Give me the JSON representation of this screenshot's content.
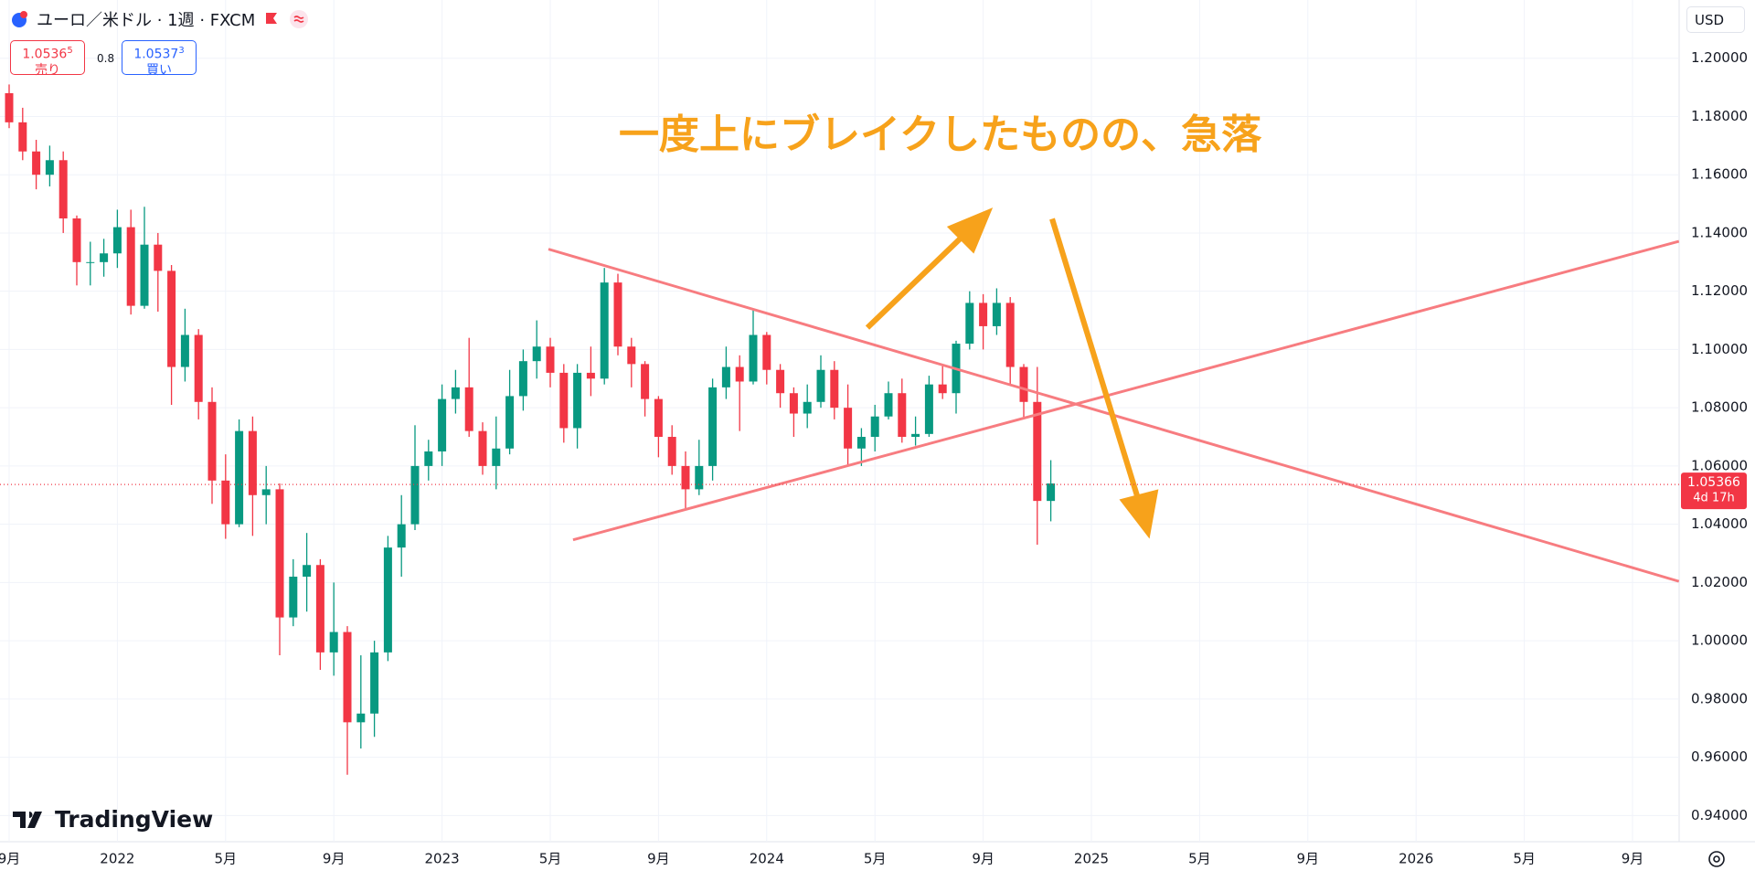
{
  "chart_data": {
    "type": "candlestick",
    "title": "ユーロ／米ドル · 1週 · FXCM",
    "currency": "USD",
    "quote": {
      "bid": "1.0536",
      "bid_pip": "5",
      "bid_label": "売り",
      "spread": "0.8",
      "ask": "1.0537",
      "ask_pip": "3",
      "ask_label": "買い"
    },
    "annotation": "一度上にブレイクしたものの、急落",
    "brand": "TradingView",
    "last_price": 1.05366,
    "countdown": "4d 17h",
    "up_color": "#089981",
    "down_color": "#f23645",
    "grid": true,
    "ylim": [
      0.931,
      1.22
    ],
    "yticks": [
      {
        "value": 0.94,
        "label": "0.94000"
      },
      {
        "value": 0.96,
        "label": "0.96000"
      },
      {
        "value": 0.98,
        "label": "0.98000"
      },
      {
        "value": 1.0,
        "label": "1.00000"
      },
      {
        "value": 1.02,
        "label": "1.02000"
      },
      {
        "value": 1.04,
        "label": "1.04000"
      },
      {
        "value": 1.06,
        "label": "1.06000"
      },
      {
        "value": 1.08,
        "label": "1.08000"
      },
      {
        "value": 1.1,
        "label": "1.10000"
      },
      {
        "value": 1.12,
        "label": "1.12000"
      },
      {
        "value": 1.14,
        "label": "1.14000"
      },
      {
        "value": 1.16,
        "label": "1.16000"
      },
      {
        "value": 1.18,
        "label": "1.18000"
      },
      {
        "value": 1.2,
        "label": "1.20000"
      }
    ],
    "categories": [
      "9月",
      null,
      null,
      null,
      null,
      null,
      null,
      null,
      "2022",
      null,
      null,
      null,
      null,
      null,
      null,
      null,
      "5月",
      null,
      null,
      null,
      null,
      null,
      null,
      null,
      "9月",
      null,
      null,
      null,
      null,
      null,
      null,
      null,
      "2023",
      null,
      null,
      null,
      null,
      null,
      null,
      null,
      "5月",
      null,
      null,
      null,
      null,
      null,
      null,
      null,
      "9月",
      null,
      null,
      null,
      null,
      null,
      null,
      null,
      "2024",
      null,
      null,
      null,
      null,
      null,
      null,
      null,
      "5月",
      null,
      null,
      null,
      null,
      null,
      null,
      null,
      "9月",
      null,
      null,
      null,
      null,
      null,
      null,
      null,
      "2025",
      null,
      null,
      null,
      null,
      null,
      null,
      null,
      "5月",
      null,
      null,
      null,
      null,
      null,
      null,
      null,
      "9月",
      null,
      null,
      null,
      null,
      null,
      null,
      null,
      "2026",
      null,
      null,
      null,
      null,
      null,
      null,
      null,
      "5月",
      null,
      null,
      null,
      null,
      null,
      null,
      null,
      "9月",
      null,
      null,
      null
    ],
    "ohlc": [
      [
        1.188,
        1.191,
        1.176,
        1.178
      ],
      [
        1.178,
        1.183,
        1.165,
        1.168
      ],
      [
        1.168,
        1.172,
        1.155,
        1.16
      ],
      [
        1.16,
        1.17,
        1.156,
        1.165
      ],
      [
        1.165,
        1.168,
        1.14,
        1.145
      ],
      [
        1.145,
        1.146,
        1.122,
        1.13
      ],
      [
        1.13,
        1.137,
        1.122,
        1.13
      ],
      [
        1.13,
        1.138,
        1.125,
        1.133
      ],
      [
        1.133,
        1.148,
        1.128,
        1.142
      ],
      [
        1.142,
        1.148,
        1.112,
        1.115
      ],
      [
        1.115,
        1.149,
        1.114,
        1.136
      ],
      [
        1.136,
        1.14,
        1.113,
        1.127
      ],
      [
        1.127,
        1.129,
        1.081,
        1.094
      ],
      [
        1.094,
        1.114,
        1.089,
        1.105
      ],
      [
        1.105,
        1.107,
        1.076,
        1.082
      ],
      [
        1.082,
        1.087,
        1.047,
        1.055
      ],
      [
        1.055,
        1.064,
        1.035,
        1.04
      ],
      [
        1.04,
        1.076,
        1.039,
        1.072
      ],
      [
        1.072,
        1.077,
        1.036,
        1.05
      ],
      [
        1.05,
        1.06,
        1.04,
        1.052
      ],
      [
        1.052,
        1.054,
        0.995,
        1.008
      ],
      [
        1.008,
        1.028,
        1.005,
        1.022
      ],
      [
        1.022,
        1.037,
        1.01,
        1.026
      ],
      [
        1.026,
        1.028,
        0.99,
        0.996
      ],
      [
        0.996,
        1.02,
        0.988,
        1.003
      ],
      [
        1.003,
        1.005,
        0.954,
        0.972
      ],
      [
        0.972,
        0.995,
        0.963,
        0.975
      ],
      [
        0.975,
        1.0,
        0.967,
        0.996
      ],
      [
        0.996,
        1.036,
        0.993,
        1.032
      ],
      [
        1.032,
        1.05,
        1.022,
        1.04
      ],
      [
        1.04,
        1.074,
        1.038,
        1.06
      ],
      [
        1.06,
        1.069,
        1.055,
        1.065
      ],
      [
        1.065,
        1.088,
        1.06,
        1.083
      ],
      [
        1.083,
        1.093,
        1.078,
        1.087
      ],
      [
        1.087,
        1.104,
        1.07,
        1.072
      ],
      [
        1.072,
        1.075,
        1.057,
        1.06
      ],
      [
        1.06,
        1.077,
        1.052,
        1.066
      ],
      [
        1.066,
        1.093,
        1.064,
        1.084
      ],
      [
        1.084,
        1.1,
        1.079,
        1.096
      ],
      [
        1.096,
        1.11,
        1.09,
        1.101
      ],
      [
        1.101,
        1.104,
        1.087,
        1.092
      ],
      [
        1.092,
        1.095,
        1.068,
        1.073
      ],
      [
        1.073,
        1.095,
        1.066,
        1.092
      ],
      [
        1.092,
        1.101,
        1.084,
        1.09
      ],
      [
        1.09,
        1.128,
        1.088,
        1.123
      ],
      [
        1.123,
        1.126,
        1.098,
        1.101
      ],
      [
        1.101,
        1.104,
        1.087,
        1.095
      ],
      [
        1.095,
        1.096,
        1.077,
        1.083
      ],
      [
        1.083,
        1.084,
        1.063,
        1.07
      ],
      [
        1.07,
        1.074,
        1.057,
        1.06
      ],
      [
        1.06,
        1.065,
        1.045,
        1.052
      ],
      [
        1.052,
        1.069,
        1.05,
        1.06
      ],
      [
        1.06,
        1.09,
        1.055,
        1.087
      ],
      [
        1.087,
        1.101,
        1.083,
        1.094
      ],
      [
        1.094,
        1.098,
        1.072,
        1.089
      ],
      [
        1.089,
        1.114,
        1.088,
        1.105
      ],
      [
        1.105,
        1.106,
        1.088,
        1.093
      ],
      [
        1.093,
        1.095,
        1.08,
        1.085
      ],
      [
        1.085,
        1.087,
        1.07,
        1.078
      ],
      [
        1.078,
        1.088,
        1.073,
        1.082
      ],
      [
        1.082,
        1.098,
        1.08,
        1.093
      ],
      [
        1.093,
        1.096,
        1.076,
        1.08
      ],
      [
        1.08,
        1.088,
        1.06,
        1.066
      ],
      [
        1.066,
        1.073,
        1.06,
        1.07
      ],
      [
        1.07,
        1.081,
        1.065,
        1.077
      ],
      [
        1.077,
        1.089,
        1.076,
        1.085
      ],
      [
        1.085,
        1.09,
        1.068,
        1.07
      ],
      [
        1.07,
        1.077,
        1.067,
        1.071
      ],
      [
        1.071,
        1.091,
        1.07,
        1.088
      ],
      [
        1.088,
        1.095,
        1.083,
        1.085
      ],
      [
        1.085,
        1.103,
        1.078,
        1.102
      ],
      [
        1.102,
        1.12,
        1.1,
        1.116
      ],
      [
        1.116,
        1.119,
        1.1,
        1.108
      ],
      [
        1.108,
        1.121,
        1.105,
        1.116
      ],
      [
        1.116,
        1.118,
        1.088,
        1.094
      ],
      [
        1.094,
        1.095,
        1.076,
        1.082
      ],
      [
        1.082,
        1.094,
        1.033,
        1.048
      ],
      [
        1.048,
        1.062,
        1.041,
        1.054
      ],
      null,
      null,
      null,
      null,
      null,
      null,
      null,
      null,
      null,
      null,
      null,
      null,
      null,
      null,
      null,
      null,
      null,
      null,
      null,
      null,
      null,
      null,
      null,
      null,
      null,
      null,
      null,
      null,
      null,
      null,
      null,
      null,
      null,
      null,
      null,
      null,
      null,
      null,
      null,
      null,
      null,
      null,
      null,
      null,
      null,
      null
    ]
  }
}
